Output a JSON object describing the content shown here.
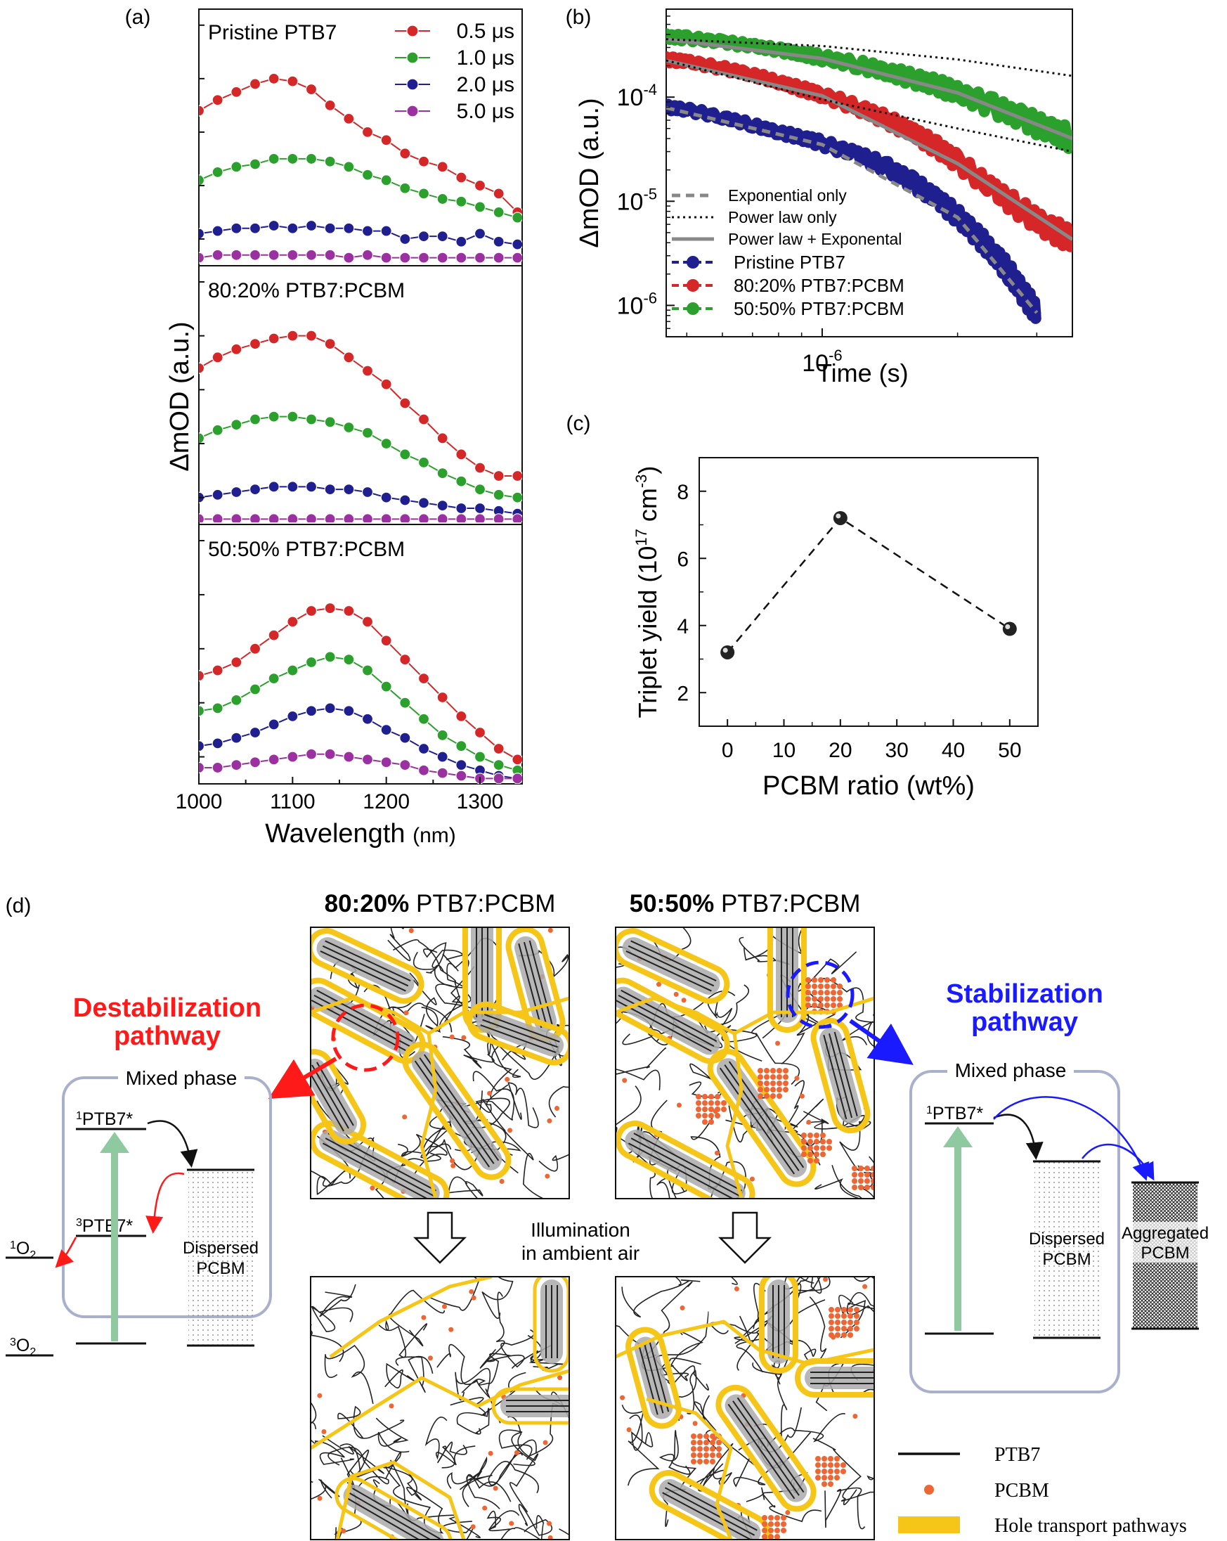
{
  "chart_data": [
    {
      "id": "a",
      "type": "line",
      "panel_label": "(a)",
      "xlabel": "Wavelength",
      "xlabel_unit": "(nm)",
      "ylabel": "ΔmOD (a.u.)",
      "xlim": [
        1000,
        1345
      ],
      "xticks": [
        "1000",
        "1100",
        "1200",
        "1300"
      ],
      "x": [
        1000,
        1020,
        1040,
        1060,
        1080,
        1100,
        1120,
        1140,
        1160,
        1180,
        1200,
        1220,
        1240,
        1260,
        1280,
        1300,
        1320,
        1340
      ],
      "legend_location": "top-right",
      "legend": [
        "0.5 μs",
        "1.0 μs",
        "2.0 μs",
        "5.0 μs"
      ],
      "colors": [
        "#d62728",
        "#2ca02c",
        "#1f1f8f",
        "#9b30a0"
      ],
      "subpanels": [
        {
          "label": "Pristine PTB7",
          "ylim": [
            0,
            0.96
          ],
          "series": [
            {
              "name": "0.5 μs",
              "values": [
                0.58,
                0.62,
                0.65,
                0.68,
                0.7,
                0.69,
                0.66,
                0.6,
                0.55,
                0.5,
                0.47,
                0.42,
                0.39,
                0.37,
                0.33,
                0.3,
                0.27,
                0.2
              ]
            },
            {
              "name": "1.0 μs",
              "values": [
                0.32,
                0.35,
                0.37,
                0.38,
                0.4,
                0.4,
                0.4,
                0.39,
                0.37,
                0.34,
                0.32,
                0.29,
                0.27,
                0.25,
                0.24,
                0.22,
                0.2,
                0.18
              ]
            },
            {
              "name": "2.0 μs",
              "values": [
                0.12,
                0.13,
                0.14,
                0.14,
                0.15,
                0.14,
                0.15,
                0.14,
                0.14,
                0.13,
                0.13,
                0.1,
                0.11,
                0.11,
                0.09,
                0.12,
                0.09,
                0.08
              ]
            },
            {
              "name": "5.0 μs",
              "values": [
                0.03,
                0.04,
                0.04,
                0.04,
                0.04,
                0.04,
                0.04,
                0.04,
                0.03,
                0.04,
                0.03,
                0.03,
                0.03,
                0.03,
                0.03,
                0.03,
                0.03,
                0.03
              ]
            }
          ]
        },
        {
          "label": "80:20% PTB7:PCBM",
          "ylim": [
            0,
            0.96
          ],
          "series": [
            {
              "name": "0.5 μs",
              "values": [
                0.58,
                0.62,
                0.65,
                0.67,
                0.69,
                0.7,
                0.7,
                0.67,
                0.62,
                0.57,
                0.52,
                0.45,
                0.39,
                0.32,
                0.26,
                0.21,
                0.18,
                0.18
              ]
            },
            {
              "name": "1.0 μs",
              "values": [
                0.32,
                0.35,
                0.37,
                0.39,
                0.4,
                0.4,
                0.39,
                0.38,
                0.36,
                0.34,
                0.3,
                0.26,
                0.23,
                0.19,
                0.16,
                0.13,
                0.11,
                0.1
              ]
            },
            {
              "name": "2.0 μs",
              "values": [
                0.1,
                0.11,
                0.12,
                0.13,
                0.14,
                0.14,
                0.14,
                0.13,
                0.13,
                0.12,
                0.1,
                0.09,
                0.08,
                0.07,
                0.06,
                0.06,
                0.05,
                0.04
              ]
            },
            {
              "name": "5.0 μs",
              "values": [
                0.02,
                0.02,
                0.02,
                0.02,
                0.02,
                0.02,
                0.02,
                0.02,
                0.02,
                0.02,
                0.02,
                0.02,
                0.02,
                0.02,
                0.02,
                0.02,
                0.02,
                0.02
              ]
            }
          ]
        },
        {
          "label": "50:50% PTB7:PCBM",
          "ylim": [
            0,
            0.96
          ],
          "series": [
            {
              "name": "0.5 μs",
              "values": [
                0.4,
                0.42,
                0.45,
                0.5,
                0.55,
                0.6,
                0.64,
                0.65,
                0.64,
                0.6,
                0.53,
                0.46,
                0.39,
                0.32,
                0.25,
                0.19,
                0.13,
                0.09
              ]
            },
            {
              "name": "1.0 μs",
              "values": [
                0.27,
                0.28,
                0.31,
                0.35,
                0.39,
                0.42,
                0.45,
                0.47,
                0.46,
                0.42,
                0.36,
                0.3,
                0.24,
                0.18,
                0.14,
                0.1,
                0.07,
                0.05
              ]
            },
            {
              "name": "2.0 μs",
              "values": [
                0.14,
                0.15,
                0.17,
                0.19,
                0.22,
                0.25,
                0.27,
                0.28,
                0.27,
                0.24,
                0.2,
                0.17,
                0.13,
                0.1,
                0.07,
                0.05,
                0.03,
                0.02
              ]
            },
            {
              "name": "5.0 μs",
              "values": [
                0.06,
                0.06,
                0.07,
                0.08,
                0.09,
                0.1,
                0.11,
                0.11,
                0.1,
                0.09,
                0.08,
                0.07,
                0.05,
                0.04,
                0.03,
                0.02,
                0.02,
                0.02
              ]
            }
          ]
        }
      ]
    },
    {
      "id": "b",
      "type": "scatter",
      "panel_label": "(b)",
      "xlabel": "Time (s)",
      "ylabel": "ΔmOD (a.u.)",
      "xscale": "log",
      "yscale": "log",
      "xlim": [
        4.5e-07,
        3.6e-06
      ],
      "ylim": [
        5e-07,
        0.0007
      ],
      "xtick_labels": [
        "10^-6"
      ],
      "ytick_labels": [
        "10^-6",
        "10^-5",
        "10^-4"
      ],
      "legend_location": "bottom-left",
      "legend_lines": [
        "Exponential only",
        "Power law only",
        "Power law + Exponental"
      ],
      "series": [
        {
          "name": "Pristine PTB7",
          "color": "#1f1f8f",
          "points": [
            [
              4.5e-07,
              8e-05
            ],
            [
              5e-07,
              7.6e-05
            ],
            [
              6e-07,
              6.4e-05
            ],
            [
              7e-07,
              5.4e-05
            ],
            [
              8e-07,
              4.6e-05
            ],
            [
              9e-07,
              4.1e-05
            ],
            [
              1e-06,
              3.6e-05
            ],
            [
              1.2e-06,
              2.8e-05
            ],
            [
              1.4e-06,
              2.1e-05
            ],
            [
              1.6e-06,
              1.5e-05
            ],
            [
              1.8e-06,
              1.05e-05
            ],
            [
              2e-06,
              7.2e-06
            ],
            [
              2.2e-06,
              4.8e-06
            ],
            [
              2.4e-06,
              3.2e-06
            ],
            [
              2.6e-06,
              2.1e-06
            ],
            [
              2.8e-06,
              1.3e-06
            ],
            [
              3e-06,
              8.5e-07
            ]
          ]
        },
        {
          "name": "80:20% PTB7:PCBM",
          "color": "#d62728",
          "points": [
            [
              4.5e-07,
              0.00023
            ],
            [
              5e-07,
              0.00022
            ],
            [
              6e-07,
              0.00019
            ],
            [
              7e-07,
              0.000165
            ],
            [
              8e-07,
              0.00014
            ],
            [
              9e-07,
              0.00012
            ],
            [
              1e-06,
              0.000105
            ],
            [
              1.2e-06,
              8e-05
            ],
            [
              1.4e-06,
              6e-05
            ],
            [
              1.6e-06,
              4.5e-05
            ],
            [
              1.8e-06,
              3.3e-05
            ],
            [
              2e-06,
              2.4e-05
            ],
            [
              2.4e-06,
              1.3e-05
            ],
            [
              2.8e-06,
              8e-06
            ],
            [
              3.2e-06,
              5.5e-06
            ],
            [
              3.6e-06,
              4.3e-06
            ]
          ]
        },
        {
          "name": "50:50% PTB7:PCBM",
          "color": "#2ca02c",
          "points": [
            [
              4.5e-07,
              0.00038
            ],
            [
              5e-07,
              0.00037
            ],
            [
              6e-07,
              0.00034
            ],
            [
              7e-07,
              0.00031
            ],
            [
              8e-07,
              0.000285
            ],
            [
              9e-07,
              0.00026
            ],
            [
              1e-06,
              0.00024
            ],
            [
              1.2e-06,
              0.000205
            ],
            [
              1.4e-06,
              0.000175
            ],
            [
              1.6e-06,
              0.00015
            ],
            [
              1.8e-06,
              0.00013
            ],
            [
              2e-06,
              0.00011
            ],
            [
              2.4e-06,
              8.2e-05
            ],
            [
              2.8e-06,
              6.2e-05
            ],
            [
              3.2e-06,
              4.8e-05
            ],
            [
              3.6e-06,
              4e-05
            ]
          ]
        }
      ],
      "fits": [
        {
          "style": "solid",
          "color": "#888888",
          "points": [
            [
              4.5e-07,
              0.00036
            ],
            [
              1e-06,
              0.000235
            ],
            [
              2e-06,
              0.00011
            ],
            [
              3.6e-06,
              4e-05
            ]
          ]
        },
        {
          "style": "solid",
          "color": "#888888",
          "points": [
            [
              4.5e-07,
              0.000225
            ],
            [
              1e-06,
              0.000103
            ],
            [
              2e-06,
              2.3e-05
            ],
            [
              3.6e-06,
              4.3e-06
            ]
          ]
        },
        {
          "style": "dash",
          "color": "#888888",
          "points": [
            [
              4.5e-07,
              7.9e-05
            ],
            [
              1e-06,
              3.5e-05
            ],
            [
              2e-06,
              7e-06
            ],
            [
              3e-06,
              8.5e-07
            ]
          ]
        },
        {
          "style": "dot",
          "color": "#111111",
          "points": [
            [
              4.5e-07,
              0.00036
            ],
            [
              1e-06,
              0.00031
            ],
            [
              2e-06,
              0.00023
            ],
            [
              3.6e-06,
              0.00016
            ]
          ]
        },
        {
          "style": "dot",
          "color": "#111111",
          "points": [
            [
              4.5e-07,
              0.000225
            ],
            [
              1e-06,
              9.5e-05
            ],
            [
              2e-06,
              5e-05
            ],
            [
              3.6e-06,
              3e-05
            ]
          ]
        }
      ]
    },
    {
      "id": "c",
      "type": "scatter",
      "panel_label": "(c)",
      "xlabel": "PCBM ratio (wt%)",
      "ylabel": "Triplet yield (10^17 cm^-3)",
      "ylabel_parts": [
        "Triplet yield (10",
        "17",
        " cm",
        "-3",
        ")"
      ],
      "xlim": [
        -5,
        55
      ],
      "ylim": [
        1,
        9
      ],
      "xticks": [
        0,
        10,
        20,
        30,
        40,
        50
      ],
      "yticks": [
        2,
        4,
        6,
        8
      ],
      "x": [
        0,
        20,
        50
      ],
      "values": [
        3.2,
        7.2,
        3.9
      ]
    }
  ],
  "schematic": {
    "panel_label": "(d)",
    "morph_title_1_bold": "80:20%",
    "morph_title_1_rest": " PTB7:PCBM",
    "morph_title_2_bold": "50:50%",
    "morph_title_2_rest": " PTB7:PCBM",
    "illumination_line1": "Illumination",
    "illumination_line2": "in ambient air",
    "destab_line1": "Destabilization",
    "destab_line2": "pathway",
    "stab_line1": "Stabilization",
    "stab_line2": "pathway",
    "mixed_phase": "Mixed phase",
    "s1_state_base": "PTB7*",
    "s1_state_sup": "1",
    "t1_state_base": "PTB7*",
    "t1_state_sup": "3",
    "singlet_oxygen_sup": "1",
    "singlet_oxygen_base": "O",
    "singlet_oxygen_sub": "2",
    "triplet_oxygen_sup": "3",
    "triplet_oxygen_base": "O",
    "triplet_oxygen_sub": "2",
    "dispersed_line1": "Dispersed",
    "dispersed_line2": "PCBM",
    "aggregated_line1": "Aggregated",
    "aggregated_line2": "PCBM",
    "legend": [
      "PTB7",
      "PCBM",
      "Hole transport pathways"
    ],
    "colors": {
      "destab": "#ff1a1a",
      "stab": "#1a1aff",
      "pcbm": "#ee6633",
      "hole": "#f5c518",
      "green": "#8fc9a0",
      "box": "#a9b0cc",
      "crystal": "#9a9a9a"
    }
  }
}
